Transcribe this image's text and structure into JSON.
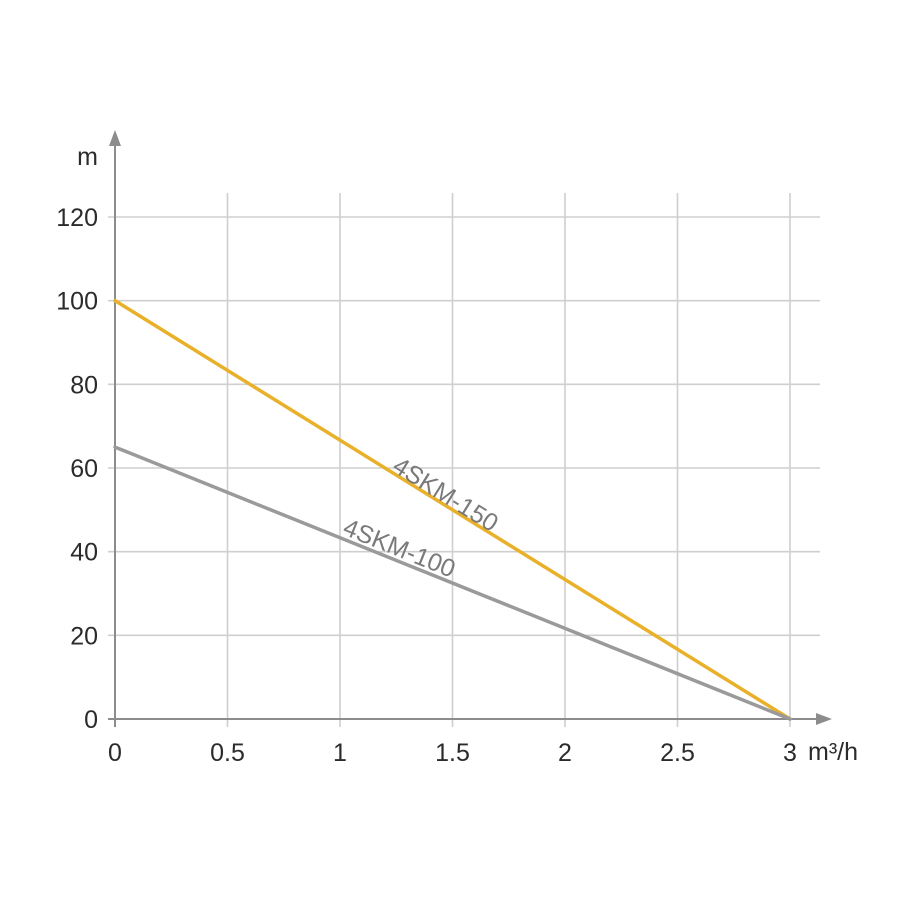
{
  "chart_data": {
    "type": "line",
    "xlabel": "m³/h",
    "ylabel": "m",
    "xlim": [
      0,
      3
    ],
    "ylim": [
      0,
      120
    ],
    "x_ticks": [
      0,
      0.5,
      1,
      1.5,
      2,
      2.5,
      3
    ],
    "x_tick_labels": [
      "0",
      "0.5",
      "1",
      "1.5",
      "2",
      "2.5",
      "3"
    ],
    "y_ticks": [
      0,
      20,
      40,
      60,
      80,
      100,
      120
    ],
    "y_tick_labels": [
      "0",
      "20",
      "40",
      "60",
      "80",
      "100",
      "120"
    ],
    "grid": true,
    "series": [
      {
        "name": "4SKM-150",
        "color": "#e9b02a",
        "x": [
          0,
          3
        ],
        "y": [
          100,
          0
        ],
        "label_at": {
          "x": 1.45,
          "y": 52
        }
      },
      {
        "name": "4SKM-100",
        "color": "#9a9a9a",
        "x": [
          0,
          3
        ],
        "y": [
          65,
          0
        ],
        "label_at": {
          "x": 1.25,
          "y": 39
        }
      }
    ]
  }
}
